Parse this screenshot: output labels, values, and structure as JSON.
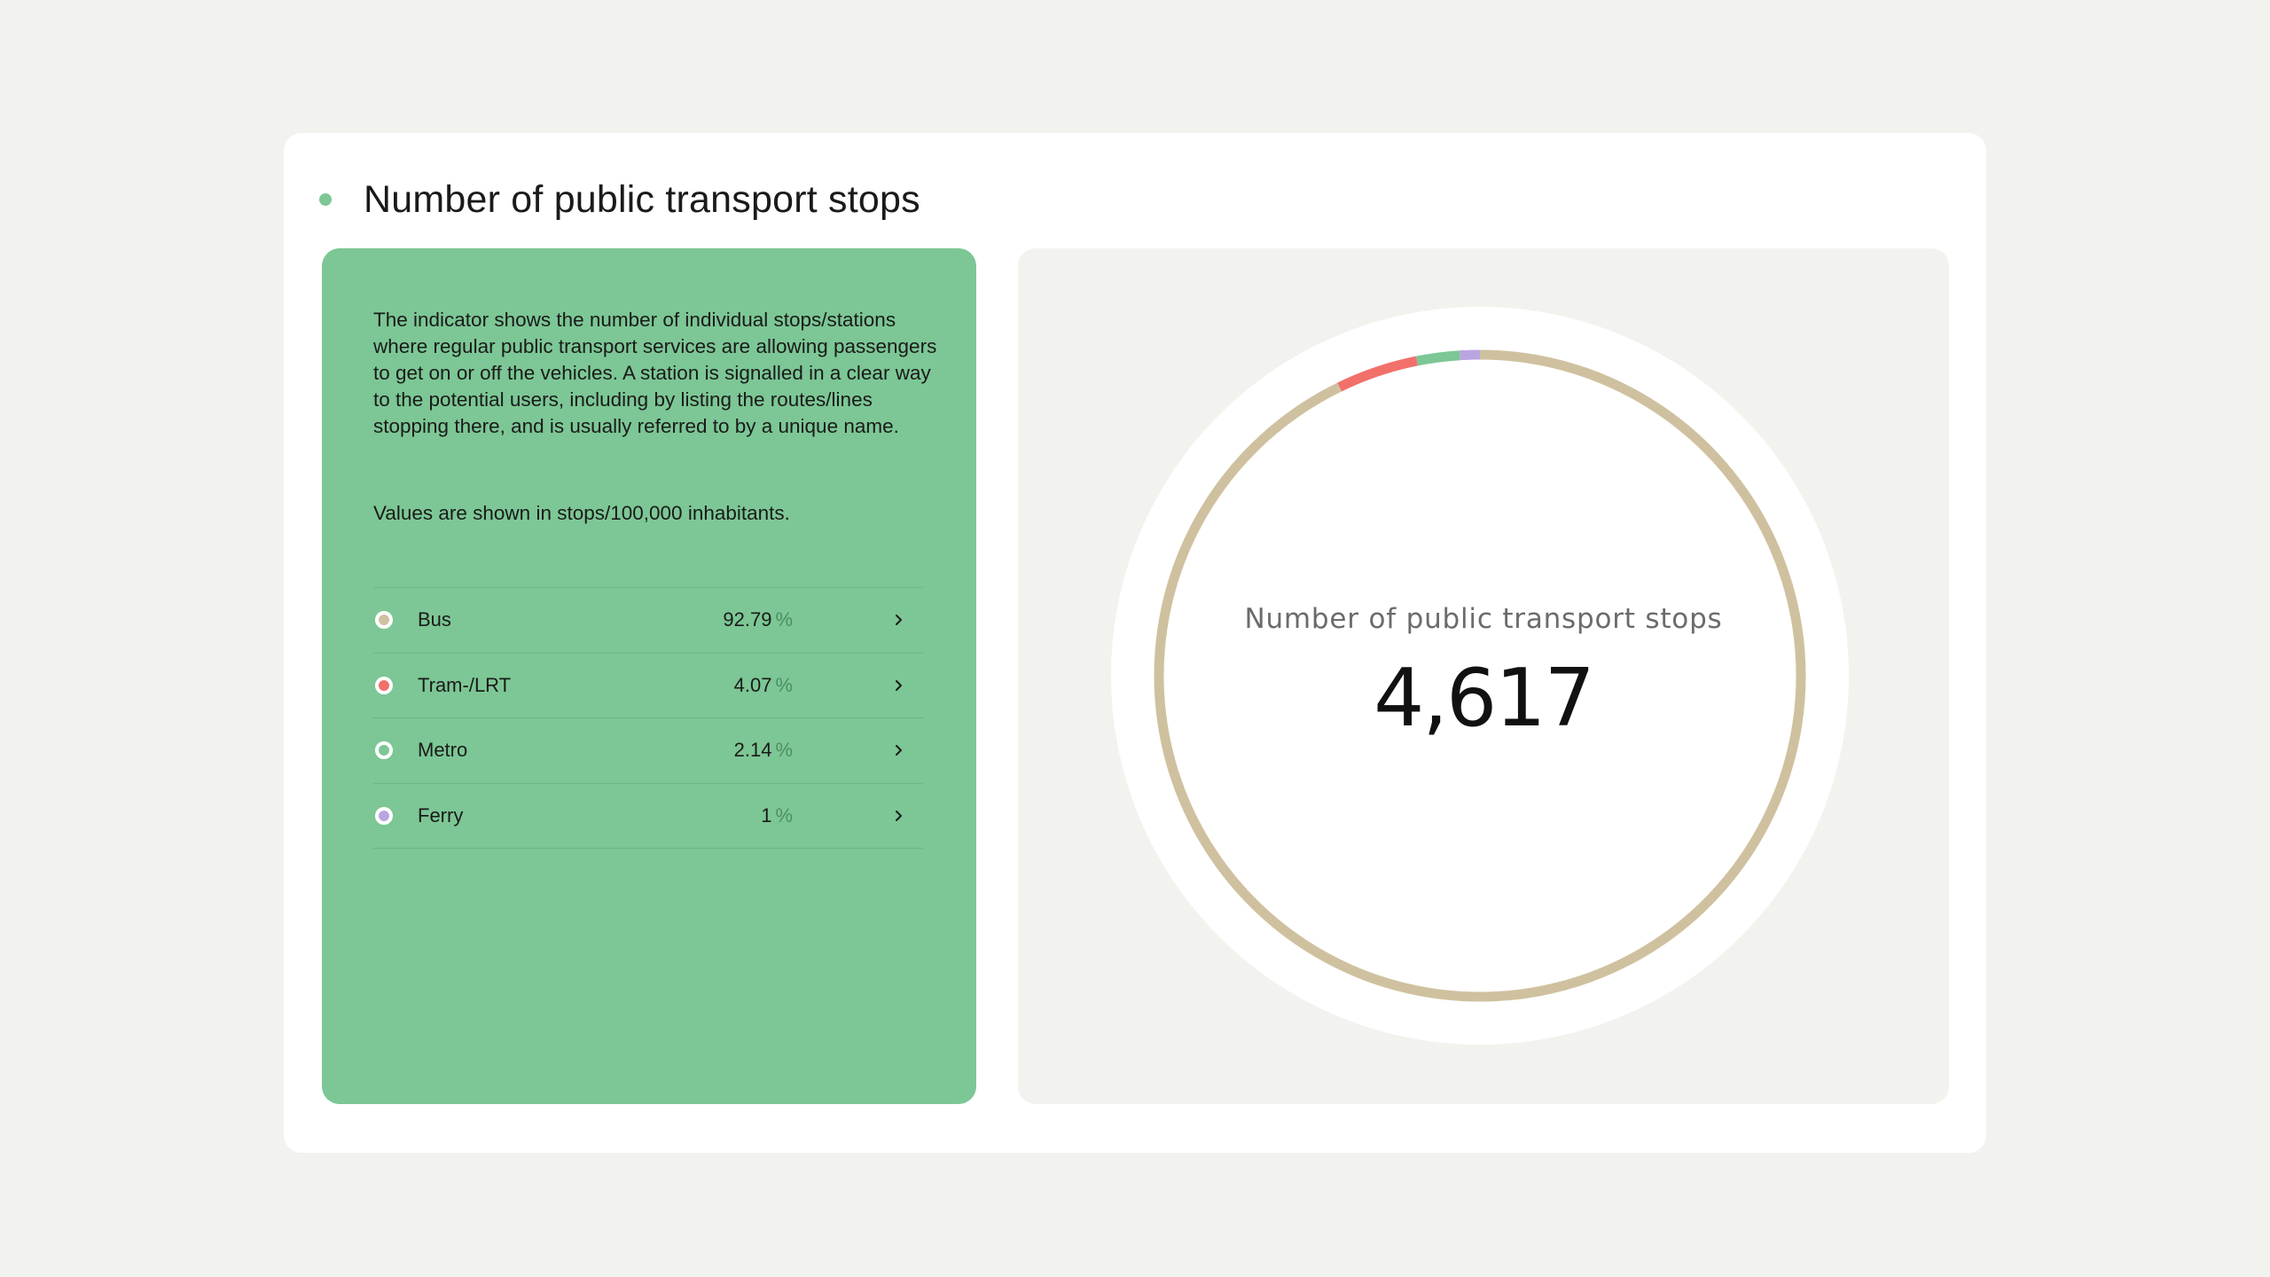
{
  "header": {
    "title": "Number of public transport stops",
    "accent_color": "#7cc795"
  },
  "info": {
    "description": "The indicator shows the number of individual stops/stations where regular public transport services are allowing passengers to get on or off the vehicles. A station is signalled in a clear way to the potential users, including by listing the routes/lines stopping there, and is usually referred to by a unique name.",
    "units_note": "Values are shown in stops/100,000 inhabitants.",
    "panel_color": "#7cc795"
  },
  "legend": {
    "percent_sign": "%",
    "chevron_icon": "chevron-right-icon",
    "items": [
      {
        "label": "Bus",
        "value": "92.79",
        "color": "#cfc19f"
      },
      {
        "label": "Tram-/LRT",
        "value": "4.07",
        "color": "#f2706a"
      },
      {
        "label": "Metro",
        "value": "2.14",
        "color": "#7cc795"
      },
      {
        "label": "Ferry",
        "value": "1",
        "color": "#b9a6df"
      }
    ]
  },
  "chart_data": {
    "type": "pie",
    "variant": "donut",
    "title": "",
    "center_label": "Number of public transport stops",
    "center_value": "4,617",
    "categories": [
      "Bus",
      "Tram-/LRT",
      "Metro",
      "Ferry"
    ],
    "values": [
      92.79,
      4.07,
      2.14,
      1
    ],
    "colors": [
      "#cfc19f",
      "#f2706a",
      "#7cc795",
      "#b9a6df"
    ],
    "unit": "%",
    "legend": "left"
  }
}
